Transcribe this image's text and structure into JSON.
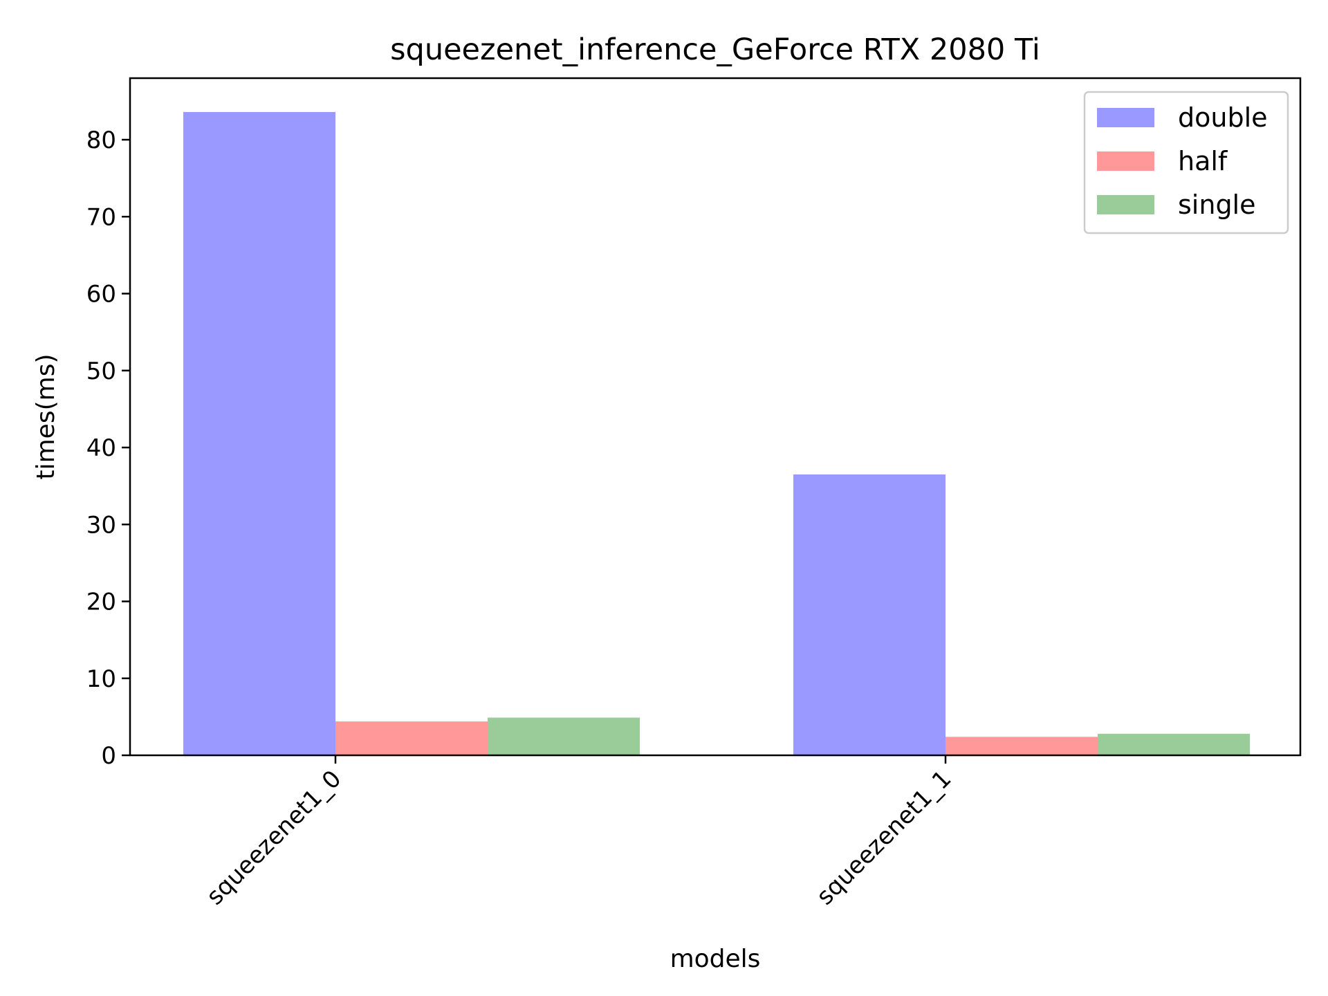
{
  "chart_data": {
    "type": "bar",
    "title": "squeezenet_inference_GeForce RTX 2080 Ti",
    "xlabel": "models",
    "ylabel": "times(ms)",
    "categories": [
      "squeezenet1_0",
      "squeezenet1_1"
    ],
    "series": [
      {
        "name": "double",
        "color": "#9999ff",
        "values": [
          83.6,
          36.5
        ]
      },
      {
        "name": "half",
        "color": "#ff9999",
        "values": [
          4.4,
          2.4
        ]
      },
      {
        "name": "single",
        "color": "#99cc99",
        "values": [
          4.9,
          2.8
        ]
      }
    ],
    "ylim": [
      0,
      88
    ],
    "yticks": [
      0,
      10,
      20,
      30,
      40,
      50,
      60,
      70,
      80
    ],
    "legend": "top-right",
    "grid": false
  }
}
